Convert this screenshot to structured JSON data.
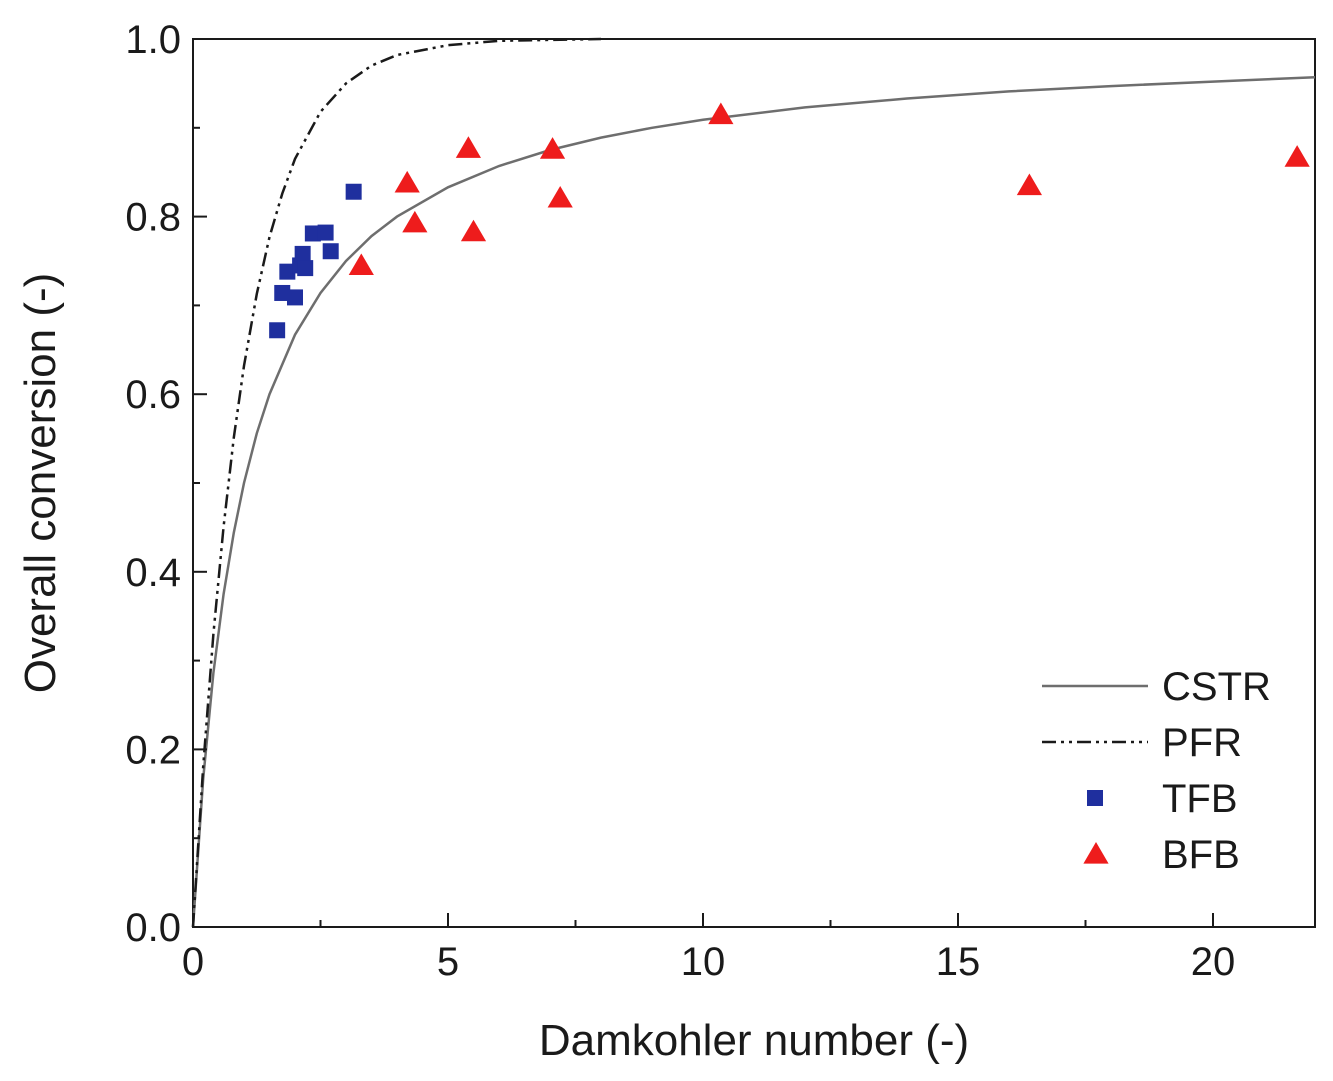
{
  "chart_data": {
    "type": "scatter",
    "xlabel": "Damkohler number (-)",
    "ylabel": "Overall conversion (-)",
    "xlim": [
      0,
      22
    ],
    "ylim": [
      0,
      1.0
    ],
    "xticks": [
      0,
      5,
      10,
      15,
      20
    ],
    "yticks": [
      0.0,
      0.2,
      0.4,
      0.6,
      0.8,
      1.0
    ],
    "xtick_labels": [
      "0",
      "5",
      "10",
      "15",
      "20"
    ],
    "ytick_labels": [
      "0.0",
      "0.2",
      "0.4",
      "0.6",
      "0.8",
      "1.0"
    ],
    "grid": false,
    "legend_position": "bottom-right",
    "series": [
      {
        "name": "CSTR",
        "kind": "line",
        "style": "solid",
        "color": "#6e6e6e",
        "x": [
          0,
          0.2,
          0.4,
          0.6,
          0.8,
          1.0,
          1.25,
          1.5,
          2.0,
          2.5,
          3.0,
          3.5,
          4.0,
          5.0,
          6.0,
          7.0,
          8.0,
          9.0,
          10.0,
          12.0,
          14.0,
          16.0,
          18.0,
          20.0,
          22.0
        ],
        "y": [
          0.0,
          0.167,
          0.286,
          0.375,
          0.444,
          0.5,
          0.556,
          0.6,
          0.667,
          0.714,
          0.75,
          0.778,
          0.8,
          0.833,
          0.857,
          0.875,
          0.889,
          0.9,
          0.909,
          0.923,
          0.933,
          0.941,
          0.947,
          0.952,
          0.957
        ]
      },
      {
        "name": "PFR",
        "kind": "line",
        "style": "dash-dot-dot",
        "color": "#1a1a1a",
        "x": [
          0,
          0.2,
          0.4,
          0.6,
          0.8,
          1.0,
          1.25,
          1.5,
          1.75,
          2.0,
          2.5,
          3.0,
          3.5,
          4.0,
          5.0,
          6.0,
          7.0,
          8.0
        ],
        "y": [
          0.0,
          0.181,
          0.33,
          0.451,
          0.551,
          0.632,
          0.713,
          0.777,
          0.826,
          0.865,
          0.918,
          0.95,
          0.97,
          0.982,
          0.993,
          0.998,
          0.999,
          1.0
        ]
      },
      {
        "name": "TFB",
        "kind": "points",
        "marker": "square",
        "color": "#1f2f9e",
        "x": [
          1.65,
          1.75,
          1.85,
          2.0,
          2.1,
          2.15,
          2.2,
          2.35,
          2.6,
          2.7,
          3.15
        ],
        "y": [
          0.672,
          0.714,
          0.738,
          0.709,
          0.745,
          0.758,
          0.742,
          0.781,
          0.782,
          0.761,
          0.828
        ]
      },
      {
        "name": "BFB",
        "kind": "points",
        "marker": "triangle",
        "color": "#ee1c1c",
        "x": [
          3.3,
          4.2,
          4.35,
          5.4,
          5.5,
          7.05,
          7.2,
          10.35,
          16.4,
          21.65
        ],
        "y": [
          0.745,
          0.838,
          0.793,
          0.877,
          0.783,
          0.876,
          0.821,
          0.915,
          0.835,
          0.867
        ]
      }
    ]
  }
}
